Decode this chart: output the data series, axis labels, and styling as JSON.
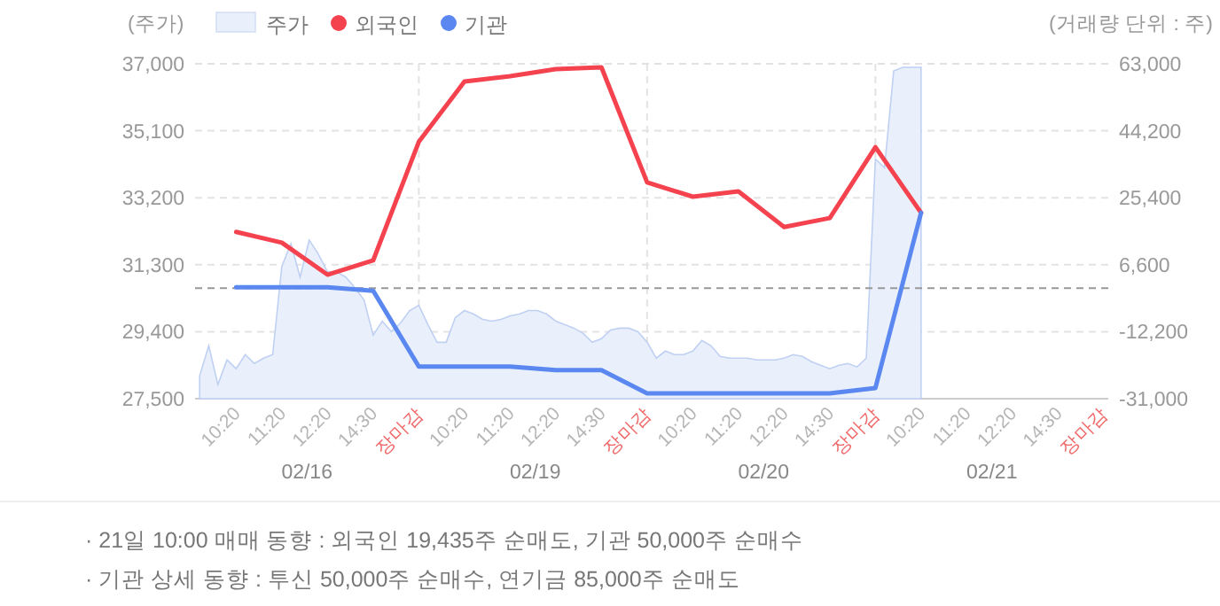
{
  "chart_data": {
    "type": "line",
    "ylabel": "(주가)",
    "y2label": "(거래량 단위 : 주)",
    "categories": [
      null,
      null,
      null,
      null,
      "10:20",
      null,
      null,
      null,
      null,
      "11:20",
      null,
      null,
      null,
      null,
      "12:20",
      null,
      null,
      null,
      null,
      "14:30",
      null,
      null,
      null,
      null,
      "장마감",
      null,
      null,
      null,
      null,
      "10:20",
      null,
      null,
      null,
      null,
      "11:20",
      null,
      null,
      null,
      null,
      "12:20",
      null,
      null,
      null,
      null,
      "14:30",
      null,
      null,
      null,
      null,
      "장마감",
      null,
      null,
      null,
      null,
      "10:20",
      null,
      null,
      null,
      null,
      "11:20",
      null,
      null,
      null,
      null,
      "12:20",
      null,
      null,
      null,
      null,
      "14:30",
      null,
      null,
      null,
      null,
      "장마감",
      null,
      null,
      null,
      null,
      "10:20",
      null,
      null,
      null,
      null,
      "11:20",
      null,
      null,
      null,
      null,
      "12:20",
      null,
      null,
      null,
      null,
      "14:30",
      null,
      null,
      null,
      null,
      "장마감"
    ],
    "ylim": [
      27500,
      37000
    ],
    "yticks": [
      {
        "value": 27500,
        "label": "27,500"
      },
      {
        "value": 29400,
        "label": "29,400"
      },
      {
        "value": 31300,
        "label": "31,300"
      },
      {
        "value": 33200,
        "label": "33,200"
      },
      {
        "value": 35100,
        "label": "35,100"
      },
      {
        "value": 37000,
        "label": "37,000"
      }
    ],
    "y2lim": [
      -31000,
      63000
    ],
    "y2ticks": [
      {
        "value": -31000,
        "label": "-31,000"
      },
      {
        "value": -12200,
        "label": "-12,200"
      },
      {
        "value": 6600,
        "label": "6,600"
      },
      {
        "value": 25400,
        "label": "25,400"
      },
      {
        "value": 44200,
        "label": "44,200"
      },
      {
        "value": 63000,
        "label": "63,000"
      }
    ],
    "series": [
      {
        "name": "주가",
        "type": "area",
        "color": "#e9f0fc",
        "values": [
          28150,
          29000,
          27900,
          28600,
          28350,
          28750,
          28500,
          28650,
          28750,
          31250,
          31900,
          30950,
          32000,
          31600,
          31100,
          31100,
          30950,
          30650,
          30300,
          29300,
          29700,
          29400,
          29650,
          30000,
          30150,
          29600,
          29100,
          29100,
          29800,
          30000,
          29900,
          29750,
          29700,
          29750,
          29850,
          29900,
          30000,
          30000,
          29900,
          29700,
          29600,
          29500,
          29350,
          29100,
          29200,
          29450,
          29500,
          29500,
          29400,
          29100,
          28650,
          28850,
          28750,
          28750,
          28850,
          29150,
          29000,
          28700,
          28650,
          28650,
          28650,
          28600,
          28600,
          28600,
          28650,
          28750,
          28700,
          28550,
          28450,
          28350,
          28450,
          28500,
          28400,
          28650,
          34300,
          34050,
          36800,
          36900,
          36900,
          36900,
          null,
          null,
          null,
          null,
          null,
          null,
          null,
          null,
          null,
          null,
          null,
          null,
          null,
          null,
          null,
          null,
          null,
          null,
          null,
          null
        ]
      },
      {
        "name": "외국인",
        "axis": "y2",
        "color": "#f5424f",
        "values": [
          null,
          null,
          null,
          null,
          15800,
          null,
          null,
          null,
          null,
          12800,
          null,
          null,
          null,
          null,
          3800,
          null,
          null,
          null,
          null,
          7800,
          null,
          null,
          null,
          null,
          41100,
          null,
          null,
          null,
          null,
          58000,
          null,
          null,
          null,
          null,
          59500,
          null,
          null,
          null,
          null,
          61500,
          null,
          null,
          null,
          null,
          62000,
          null,
          null,
          null,
          null,
          29700,
          null,
          null,
          null,
          null,
          25700,
          null,
          null,
          null,
          null,
          27200,
          null,
          null,
          null,
          null,
          17200,
          null,
          null,
          null,
          null,
          19700,
          null,
          null,
          null,
          null,
          39600,
          null,
          null,
          null,
          null,
          21200,
          null,
          null,
          null,
          null,
          null,
          null,
          null,
          null,
          null,
          null,
          null,
          null,
          null,
          null,
          null,
          null,
          null,
          null,
          null,
          null
        ]
      },
      {
        "name": "기관",
        "axis": "y2",
        "color": "#5b87f0",
        "values": [
          null,
          null,
          null,
          null,
          300,
          null,
          null,
          null,
          null,
          300,
          null,
          null,
          null,
          null,
          300,
          null,
          null,
          null,
          null,
          -700,
          null,
          null,
          null,
          null,
          -22000,
          null,
          null,
          null,
          null,
          -22000,
          null,
          null,
          null,
          null,
          -22000,
          null,
          null,
          null,
          null,
          -23000,
          null,
          null,
          null,
          null,
          -23000,
          null,
          null,
          null,
          null,
          -29500,
          null,
          null,
          null,
          null,
          -29500,
          null,
          null,
          null,
          null,
          -29500,
          null,
          null,
          null,
          null,
          -29500,
          null,
          null,
          null,
          null,
          -29500,
          null,
          null,
          null,
          null,
          -28000,
          null,
          null,
          null,
          null,
          21200,
          null,
          null,
          null,
          null,
          null,
          null,
          null,
          null,
          null,
          null,
          null,
          null,
          null,
          null,
          null,
          null,
          null,
          null,
          null,
          null
        ]
      }
    ],
    "ref_lines": [
      {
        "axis": "y2",
        "value": 0,
        "line_style": "dashed",
        "color": "#999999"
      }
    ],
    "grid": true,
    "legend": "top left",
    "annotations": [
      "02/16",
      "02/19",
      "02/20",
      "02/21",
      "· 21일 10:00 매매 동향 : 외국인 19,435주 순매도, 기관 50,000주 순매수",
      "· 기관 상세 동향 : 투신 50,000주 순매수, 연기금 85,000주 순매도"
    ]
  }
}
